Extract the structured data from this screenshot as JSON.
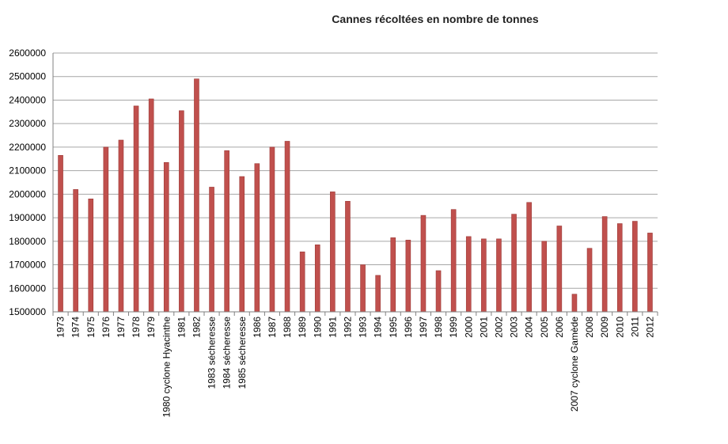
{
  "chart_data": {
    "type": "bar",
    "title": "Cannes récoltées en nombre de tonnes",
    "xlabel": "",
    "ylabel": "",
    "ylim": [
      1500000,
      2600000
    ],
    "yticks": [
      1500000,
      1600000,
      1700000,
      1800000,
      1900000,
      2000000,
      2100000,
      2200000,
      2300000,
      2400000,
      2500000,
      2600000
    ],
    "grid": true,
    "legend": "none",
    "bar_color": "#c0504d",
    "categories": [
      "1973",
      "1974",
      "1975",
      "1976",
      "1977",
      "1978",
      "1979",
      "1980 cyclone Hyacinthe",
      "1981",
      "1982",
      "1983 sécheresse",
      "1984 sécheresse",
      "1985 sécheresse",
      "1986",
      "1987",
      "1988",
      "1989",
      "1990",
      "1991",
      "1992",
      "1993",
      "1994",
      "1995",
      "1996",
      "1997",
      "1998",
      "1999",
      "2000",
      "2001",
      "2002",
      "2003",
      "2004",
      "2005",
      "2006",
      "2007 cyclone Gamède",
      "2008",
      "2009",
      "2010",
      "2011",
      "2012"
    ],
    "values": [
      2165000,
      2020000,
      1980000,
      2200000,
      2230000,
      2375000,
      2405000,
      2135000,
      2355000,
      2490000,
      2030000,
      2185000,
      2075000,
      2130000,
      2200000,
      2225000,
      1755000,
      1785000,
      2010000,
      1970000,
      1700000,
      1655000,
      1815000,
      1805000,
      1910000,
      1675000,
      1935000,
      1820000,
      1810000,
      1810000,
      1915000,
      1965000,
      1800000,
      1865000,
      1575000,
      1770000,
      1905000,
      1875000,
      1885000,
      1835000
    ]
  }
}
